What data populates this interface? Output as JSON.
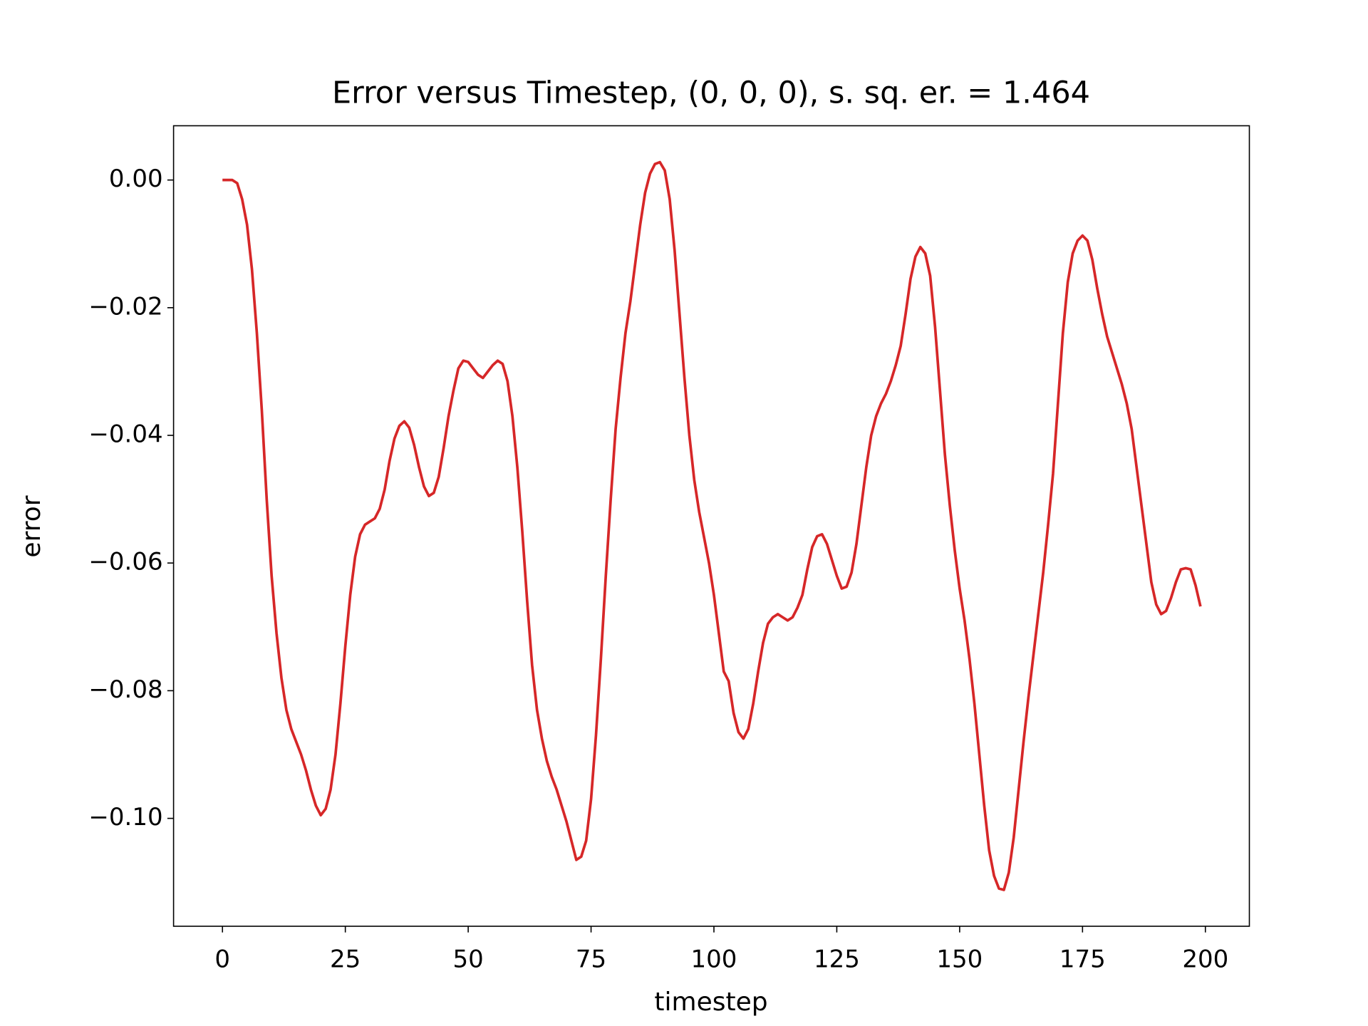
{
  "chart_data": {
    "type": "line",
    "title": "Error versus Timestep, (0, 0, 0), s. sq. er. = 1.464",
    "xlabel": "timestep",
    "ylabel": "error",
    "xlim": [
      -9.95,
      208.95
    ],
    "ylim": [
      -0.1169,
      0.0085
    ],
    "xticks": [
      0,
      25,
      50,
      75,
      100,
      125,
      150,
      175,
      200
    ],
    "yticks": [
      {
        "value": 0,
        "label": "0.00"
      },
      {
        "value": -0.02,
        "label": "−0.02"
      },
      {
        "value": -0.04,
        "label": "−0.04"
      },
      {
        "value": -0.06,
        "label": "−0.06"
      },
      {
        "value": -0.08,
        "label": "−0.08"
      },
      {
        "value": -0.1,
        "label": "−0.10"
      }
    ],
    "grid": false,
    "series": [
      {
        "color": "#d62728",
        "x": [
          0,
          1,
          2,
          3,
          4,
          5,
          6,
          7,
          8,
          9,
          10,
          11,
          12,
          13,
          14,
          15,
          16,
          17,
          18,
          19,
          20,
          21,
          22,
          23,
          24,
          25,
          26,
          27,
          28,
          29,
          30,
          31,
          32,
          33,
          34,
          35,
          36,
          37,
          38,
          39,
          40,
          41,
          42,
          43,
          44,
          45,
          46,
          47,
          48,
          49,
          50,
          51,
          52,
          53,
          54,
          55,
          56,
          57,
          58,
          59,
          60,
          61,
          62,
          63,
          64,
          65,
          66,
          67,
          68,
          69,
          70,
          71,
          72,
          73,
          74,
          75,
          76,
          77,
          78,
          79,
          80,
          81,
          82,
          83,
          84,
          85,
          86,
          87,
          88,
          89,
          90,
          91,
          92,
          93,
          94,
          95,
          96,
          97,
          98,
          99,
          100,
          101,
          102,
          103,
          104,
          105,
          106,
          107,
          108,
          109,
          110,
          111,
          112,
          113,
          114,
          115,
          116,
          117,
          118,
          119,
          120,
          121,
          122,
          123,
          124,
          125,
          126,
          127,
          128,
          129,
          130,
          131,
          132,
          133,
          134,
          135,
          136,
          137,
          138,
          139,
          140,
          141,
          142,
          143,
          144,
          145,
          146,
          147,
          148,
          149,
          150,
          151,
          152,
          153,
          154,
          155,
          156,
          157,
          158,
          159,
          160,
          161,
          162,
          163,
          164,
          165,
          166,
          167,
          168,
          169,
          170,
          171,
          172,
          173,
          174,
          175,
          176,
          177,
          178,
          179,
          180,
          181,
          182,
          183,
          184,
          185,
          186,
          187,
          188,
          189,
          190,
          191,
          192,
          193,
          194,
          195,
          196,
          197,
          198,
          199
        ],
        "values": [
          0,
          0,
          0,
          -0.0005,
          -0.003,
          -0.007,
          -0.014,
          -0.024,
          -0.036,
          -0.05,
          -0.062,
          -0.071,
          -0.078,
          -0.083,
          -0.086,
          -0.088,
          -0.09,
          -0.0925,
          -0.0955,
          -0.098,
          -0.0995,
          -0.0985,
          -0.0955,
          -0.09,
          -0.082,
          -0.073,
          -0.065,
          -0.059,
          -0.0555,
          -0.054,
          -0.0535,
          -0.053,
          -0.0515,
          -0.0485,
          -0.044,
          -0.0405,
          -0.0385,
          -0.0378,
          -0.0388,
          -0.0415,
          -0.045,
          -0.048,
          -0.0495,
          -0.049,
          -0.0465,
          -0.042,
          -0.037,
          -0.033,
          -0.0295,
          -0.0283,
          -0.0285,
          -0.0295,
          -0.0305,
          -0.031,
          -0.03,
          -0.029,
          -0.0283,
          -0.0288,
          -0.0315,
          -0.037,
          -0.045,
          -0.055,
          -0.066,
          -0.076,
          -0.083,
          -0.0875,
          -0.091,
          -0.0935,
          -0.0955,
          -0.098,
          -0.1005,
          -0.1035,
          -0.1065,
          -0.106,
          -0.1035,
          -0.097,
          -0.087,
          -0.075,
          -0.062,
          -0.05,
          -0.039,
          -0.031,
          -0.024,
          -0.019,
          -0.013,
          -0.007,
          -0.002,
          0.001,
          0.0025,
          0.0028,
          0.0015,
          -0.003,
          -0.011,
          -0.021,
          -0.031,
          -0.04,
          -0.047,
          -0.052,
          -0.056,
          -0.06,
          -0.065,
          -0.071,
          -0.077,
          -0.0785,
          -0.0835,
          -0.0865,
          -0.0875,
          -0.086,
          -0.082,
          -0.077,
          -0.0725,
          -0.0695,
          -0.0685,
          -0.068,
          -0.0685,
          -0.069,
          -0.0685,
          -0.067,
          -0.065,
          -0.061,
          -0.0575,
          -0.0558,
          -0.0555,
          -0.057,
          -0.0595,
          -0.062,
          -0.064,
          -0.0637,
          -0.0615,
          -0.057,
          -0.051,
          -0.045,
          -0.04,
          -0.037,
          -0.035,
          -0.0335,
          -0.0315,
          -0.029,
          -0.026,
          -0.021,
          -0.0155,
          -0.012,
          -0.0105,
          -0.0115,
          -0.015,
          -0.023,
          -0.033,
          -0.043,
          -0.051,
          -0.058,
          -0.064,
          -0.069,
          -0.075,
          -0.082,
          -0.09,
          -0.098,
          -0.105,
          -0.109,
          -0.111,
          -0.1112,
          -0.1085,
          -0.103,
          -0.0955,
          -0.088,
          -0.081,
          -0.0745,
          -0.068,
          -0.0615,
          -0.054,
          -0.046,
          -0.035,
          -0.024,
          -0.016,
          -0.0115,
          -0.0095,
          -0.0087,
          -0.0095,
          -0.0125,
          -0.017,
          -0.021,
          -0.0245,
          -0.027,
          -0.0295,
          -0.032,
          -0.035,
          -0.039,
          -0.045,
          -0.051,
          -0.057,
          -0.063,
          -0.0665,
          -0.068,
          -0.0675,
          -0.0655,
          -0.063,
          -0.061,
          -0.0608,
          -0.061,
          -0.0635,
          -0.0668
        ]
      }
    ]
  }
}
